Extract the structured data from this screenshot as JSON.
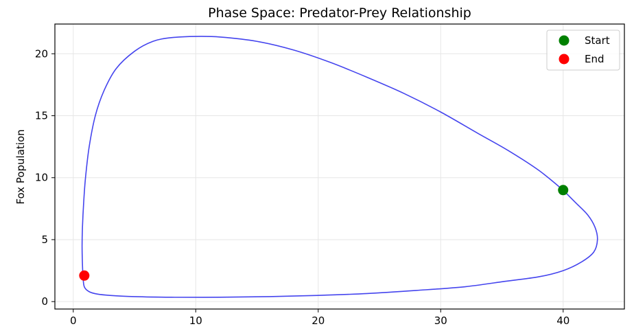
{
  "chart_data": {
    "type": "line",
    "title": "Phase Space: Predator-Prey Relationship",
    "xlabel": "",
    "ylabel": "Fox Population",
    "xlim": [
      -1.5,
      45.0
    ],
    "ylim": [
      -0.6,
      22.4
    ],
    "xticks": [
      0,
      10,
      20,
      30,
      40
    ],
    "yticks": [
      0,
      5,
      10,
      15,
      20
    ],
    "grid": true,
    "legend_position": "top-right",
    "series": [
      {
        "type": "line",
        "color": "#4444ee",
        "points": [
          [
            40.0,
            9.0
          ],
          [
            41.0,
            8.0
          ],
          [
            42.0,
            7.0
          ],
          [
            42.6,
            6.0
          ],
          [
            42.8,
            5.0
          ],
          [
            42.5,
            4.0
          ],
          [
            41.5,
            3.2
          ],
          [
            40.0,
            2.5
          ],
          [
            38.0,
            2.0
          ],
          [
            35.0,
            1.6
          ],
          [
            32.0,
            1.2
          ],
          [
            28.0,
            0.9
          ],
          [
            24.0,
            0.65
          ],
          [
            20.0,
            0.5
          ],
          [
            16.0,
            0.4
          ],
          [
            12.0,
            0.35
          ],
          [
            8.0,
            0.35
          ],
          [
            5.0,
            0.4
          ],
          [
            3.0,
            0.5
          ],
          [
            2.0,
            0.6
          ],
          [
            1.3,
            0.8
          ],
          [
            0.9,
            1.2
          ],
          [
            0.8,
            2.0
          ],
          [
            0.75,
            3.0
          ],
          [
            0.72,
            4.5
          ],
          [
            0.75,
            6.0
          ],
          [
            0.85,
            8.0
          ],
          [
            1.0,
            10.0
          ],
          [
            1.3,
            12.5
          ],
          [
            1.8,
            15.0
          ],
          [
            2.5,
            17.0
          ],
          [
            3.5,
            18.8
          ],
          [
            5.0,
            20.2
          ],
          [
            6.5,
            21.0
          ],
          [
            8.0,
            21.3
          ],
          [
            10.0,
            21.4
          ],
          [
            12.0,
            21.35
          ],
          [
            15.0,
            21.0
          ],
          [
            18.0,
            20.3
          ],
          [
            21.0,
            19.3
          ],
          [
            24.0,
            18.1
          ],
          [
            27.0,
            16.8
          ],
          [
            30.0,
            15.3
          ],
          [
            33.0,
            13.6
          ],
          [
            35.5,
            12.2
          ],
          [
            38.0,
            10.6
          ],
          [
            40.0,
            9.0
          ]
        ]
      }
    ],
    "markers": [
      {
        "name": "Start",
        "x": 40.0,
        "y": 9.0,
        "color": "#008000"
      },
      {
        "name": "End",
        "x": 0.9,
        "y": 2.1,
        "color": "#ff0000"
      }
    ]
  }
}
